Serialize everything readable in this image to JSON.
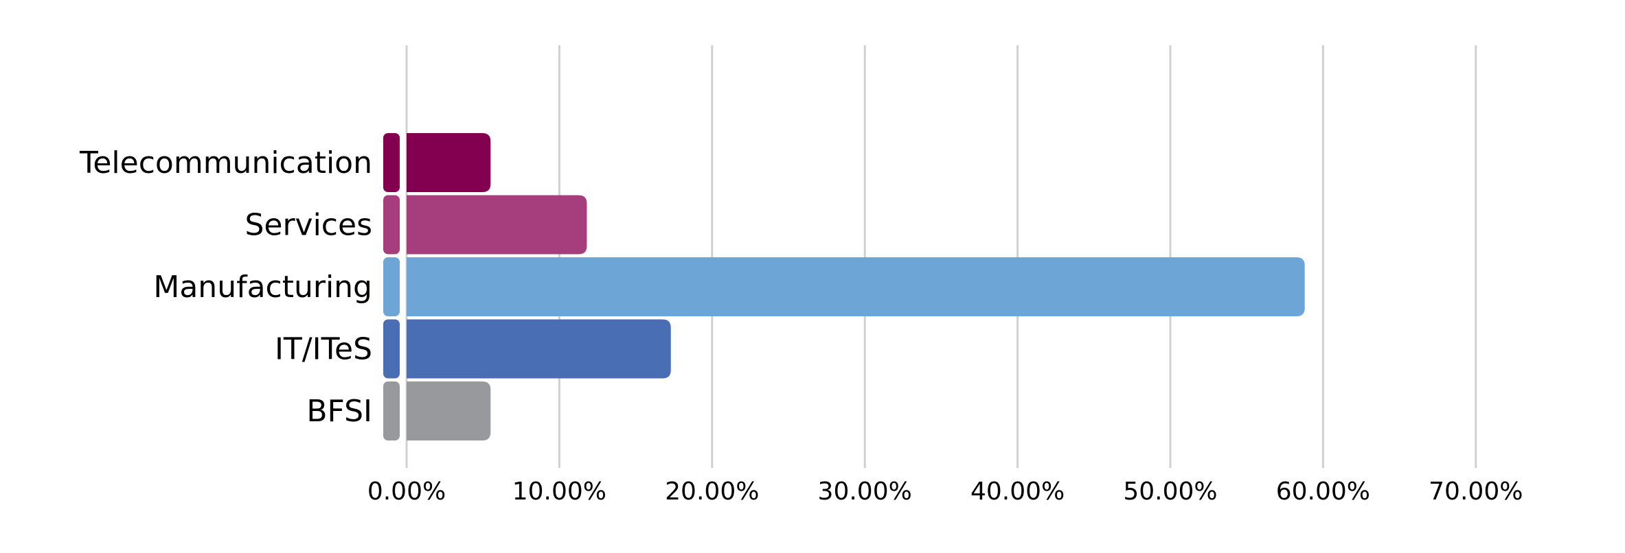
{
  "chart_data": {
    "type": "bar",
    "orientation": "horizontal",
    "categories": [
      "Telecommunication",
      "Services",
      "Manufacturing",
      "IT/ITeS",
      "BFSI"
    ],
    "values": [
      5.5,
      11.8,
      58.8,
      17.3,
      5.5
    ],
    "colors": [
      "#830051",
      "#A63D7D",
      "#6EA5D7",
      "#4A6EB4",
      "#98999C"
    ],
    "xlim": [
      0,
      70
    ],
    "x_ticks": [
      0,
      10,
      20,
      30,
      40,
      50,
      60,
      70
    ],
    "x_tick_labels": [
      "0.00%",
      "10.00%",
      "20.00%",
      "30.00%",
      "40.00%",
      "50.00%",
      "60.00%",
      "70.00%"
    ],
    "grid": "vertical",
    "legend": "none",
    "gridline_color": "#D0D0D0"
  }
}
